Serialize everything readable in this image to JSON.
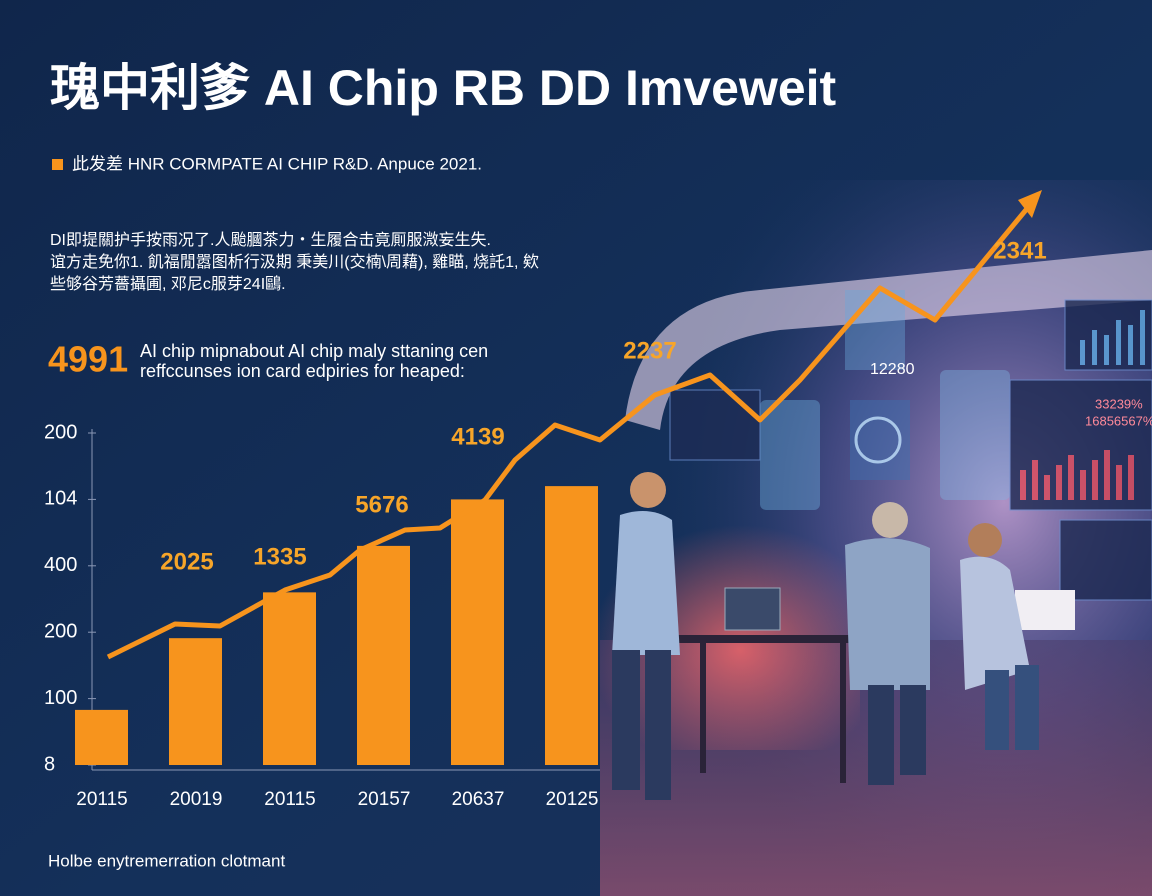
{
  "title": "瑰中利爹 AI  Chip RB  DD Imveweit",
  "subtitle": "此发差 HNR  CORMPATE AI CHIP R&D. Anpuce 2021.",
  "paragraph": [
    "DI即提關护手按雨况了.人颱膕茶力・生履合击竟厠服溦妄生失.",
    "谊方走免你1. 飢福閒嚣图析行汲期 秉美川(交楠\\周藉), 雞瞄, 烧託1, 欸",
    "些够谷芳薔攝圃, 邓尼c服芽24I鷗."
  ],
  "callout": {
    "number": "4991",
    "lines": [
      "AI chip mipnabout AI chip maly sttaning cen",
      "reffccunses ion card edpiries for heaped:"
    ]
  },
  "chart_data": {
    "type": "bar",
    "categories": [
      "20115",
      "20019",
      "20115",
      "20157",
      "20637",
      "20125"
    ],
    "values": [
      0.83,
      1.91,
      2.6,
      3.3,
      4.0,
      4.2
    ],
    "color": "#f7941d",
    "ylim": [
      0,
      5
    ],
    "yticks": [
      {
        "value": 0,
        "label": "8"
      },
      {
        "value": 1,
        "label": "100"
      },
      {
        "value": 2,
        "label": "200"
      },
      {
        "value": 3,
        "label": "400"
      },
      {
        "value": 4,
        "label": "104"
      },
      {
        "value": 5,
        "label": "200"
      }
    ],
    "annotations": [
      "2025",
      "1335",
      "5676",
      "4139",
      "2237",
      "2341"
    ]
  },
  "screen_labels": [
    "12280",
    "33239%",
    "16856567%"
  ],
  "footer": "Holbe enytremerration clotmant"
}
